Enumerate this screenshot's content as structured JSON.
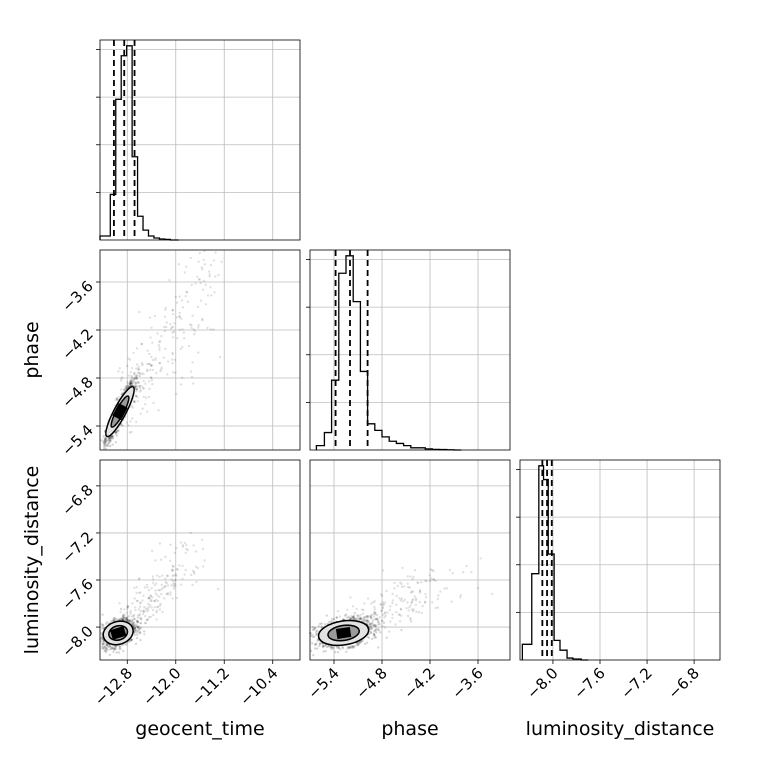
{
  "chart_data": {
    "type": "corner",
    "parameters": [
      "geocent_time",
      "phase",
      "luminosity_distance"
    ],
    "quantile_lines": [
      "dashed",
      "black"
    ],
    "grid": true,
    "histograms": [
      {
        "parameter": "geocent_time",
        "xlim": [
          -13.25,
          -9.95
        ],
        "ticks": [
          -12.8,
          -12.0,
          -11.2,
          -10.4
        ],
        "tick_labels": [
          "−12.8",
          "−12.0",
          "−11.2",
          "−10.4"
        ],
        "bin_edges": [
          -13.25,
          -13.08,
          -12.99,
          -12.9,
          -12.81,
          -12.72,
          -12.63,
          -12.54,
          -12.45,
          -12.36,
          -12.27,
          -12.18,
          -12.09,
          -11.95
        ],
        "counts": [
          0.02,
          0.23,
          0.71,
          0.93,
          0.98,
          0.42,
          0.12,
          0.05,
          0.02,
          0.01,
          0.005,
          0.003,
          0.0
        ],
        "quantiles": [
          -13.02,
          -12.85,
          -12.68
        ]
      },
      {
        "parameter": "phase",
        "xlim": [
          -5.7,
          -3.2
        ],
        "ticks": [
          -5.4,
          -4.8,
          -4.2,
          -3.6
        ],
        "tick_labels": [
          "−5.4",
          "−4.8",
          "−4.2",
          "−3.6"
        ],
        "bin_edges": [
          -5.62,
          -5.52,
          -5.43,
          -5.34,
          -5.25,
          -5.16,
          -5.07,
          -4.98,
          -4.89,
          -4.8,
          -4.71,
          -4.62,
          -4.53,
          -4.44,
          -4.35,
          -4.26,
          -4.17,
          -4.08,
          -3.99,
          -3.9,
          -3.81
        ],
        "counts": [
          0.02,
          0.08,
          0.32,
          0.81,
          0.89,
          0.68,
          0.36,
          0.12,
          0.09,
          0.06,
          0.04,
          0.03,
          0.02,
          0.01,
          0.01,
          0.005,
          0.003,
          0.002,
          0.001,
          0.0
        ],
        "quantiles": [
          -5.38,
          -5.2,
          -4.98
        ]
      },
      {
        "parameter": "luminosity_distance",
        "xlim": [
          -8.28,
          -6.58
        ],
        "ticks": [
          -8.0,
          -7.6,
          -7.2,
          -6.8
        ],
        "tick_labels": [
          "−8.0",
          "−7.6",
          "−7.2",
          "−6.8"
        ],
        "bin_edges": [
          -8.26,
          -8.18,
          -8.12,
          -8.08,
          -8.04,
          -7.99,
          -7.94,
          -7.88,
          -7.83,
          -7.76,
          -7.7
        ],
        "counts": [
          0.08,
          0.44,
          0.99,
          0.92,
          0.54,
          0.1,
          0.05,
          0.01,
          0.005,
          0.0
        ],
        "quantiles": [
          -8.09,
          -8.05,
          -8.01
        ]
      }
    ],
    "panels_2d": [
      {
        "x": "geocent_time",
        "y": "phase",
        "xlim": [
          -13.25,
          -9.95
        ],
        "ylim": [
          -5.7,
          -3.2
        ],
        "y_ticks": [
          -5.4,
          -4.8,
          -4.2,
          -3.6
        ],
        "y_tick_labels": [
          "−5.4",
          "−4.8",
          "−4.2",
          "−3.6"
        ],
        "core": [
          -12.92,
          -5.22
        ],
        "spread": [
          0.09,
          0.14
        ],
        "correlation": 0.92,
        "tail_end": [
          -11.4,
          -3.55
        ]
      },
      {
        "x": "geocent_time",
        "y": "luminosity_distance",
        "xlim": [
          -13.25,
          -9.95
        ],
        "ylim": [
          -8.28,
          -6.58
        ],
        "y_ticks": [
          -8.0,
          -7.6,
          -7.2,
          -6.8
        ],
        "y_tick_labels": [
          "−8.0",
          "−7.6",
          "−7.2",
          "−6.8"
        ],
        "core": [
          -12.95,
          -8.05
        ],
        "spread": [
          0.1,
          0.045
        ],
        "correlation": 0.35,
        "tail_end": [
          -11.7,
          -7.35
        ]
      },
      {
        "x": "phase",
        "y": "luminosity_distance",
        "xlim": [
          -5.7,
          -3.2
        ],
        "ylim": [
          -8.28,
          -6.58
        ],
        "core": [
          -5.28,
          -8.05
        ],
        "spread": [
          0.13,
          0.045
        ],
        "correlation": 0.3,
        "tail_end": [
          -4.0,
          -7.6
        ]
      }
    ]
  }
}
